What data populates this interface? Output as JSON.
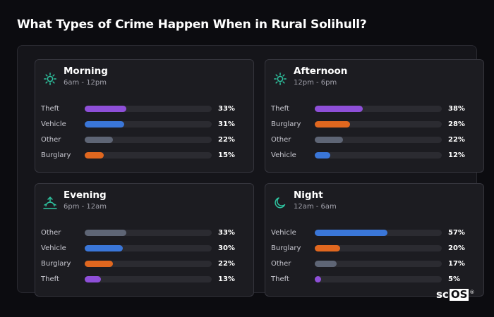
{
  "title": "What Types of Crime Happen When in Rural Solihull?",
  "colors": {
    "background": "#0c0c10",
    "card": "#1c1c21",
    "track": "#2b2b31",
    "icon": "#2ec4a0",
    "Theft": "#8e4fd8",
    "Vehicle": "#3a76d8",
    "Other": "#5e6575",
    "Burglary": "#e0671f"
  },
  "logo": {
    "prefix": "sc",
    "boxed": "OS",
    "mark": "®"
  },
  "chart_data": {
    "type": "bar",
    "orientation": "horizontal",
    "value_range": [
      0,
      100
    ],
    "unit": "%",
    "panels": [
      {
        "title": "Morning",
        "range": "6am - 12pm",
        "icon": "sun-icon",
        "categories": [
          "Theft",
          "Vehicle",
          "Other",
          "Burglary"
        ],
        "values": [
          33,
          31,
          22,
          15
        ],
        "labels": [
          "33%",
          "31%",
          "22%",
          "15%"
        ]
      },
      {
        "title": "Afternoon",
        "range": "12pm - 6pm",
        "icon": "sun-icon",
        "categories": [
          "Theft",
          "Burglary",
          "Other",
          "Vehicle"
        ],
        "values": [
          38,
          28,
          22,
          12
        ],
        "labels": [
          "38%",
          "28%",
          "22%",
          "12%"
        ]
      },
      {
        "title": "Evening",
        "range": "6pm - 12am",
        "icon": "sunset-icon",
        "categories": [
          "Other",
          "Vehicle",
          "Burglary",
          "Theft"
        ],
        "values": [
          33,
          30,
          22,
          13
        ],
        "labels": [
          "33%",
          "30%",
          "22%",
          "13%"
        ]
      },
      {
        "title": "Night",
        "range": "12am - 6am",
        "icon": "moon-icon",
        "categories": [
          "Vehicle",
          "Burglary",
          "Other",
          "Theft"
        ],
        "values": [
          57,
          20,
          17,
          5
        ],
        "labels": [
          "57%",
          "20%",
          "17%",
          "5%"
        ]
      }
    ]
  }
}
